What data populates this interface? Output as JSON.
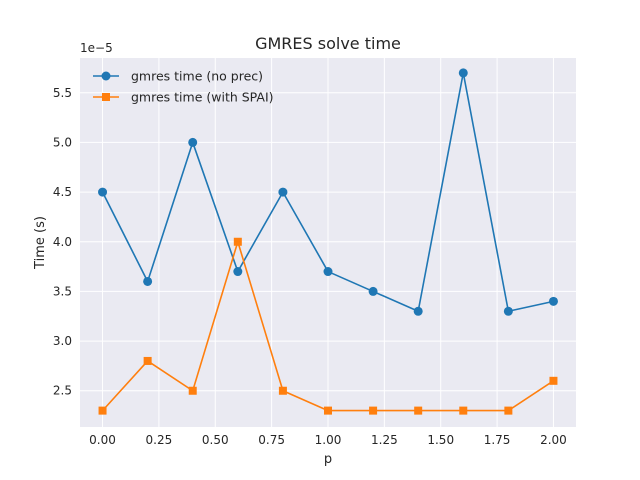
{
  "chart_data": {
    "type": "line",
    "title": "GMRES solve time",
    "xlabel": "p",
    "ylabel": "Time (s)",
    "y_offset_label": "1e−5",
    "xlim": [
      -0.1,
      2.1
    ],
    "ylim": [
      2.135,
      5.85
    ],
    "x_ticks": [
      0.0,
      0.25,
      0.5,
      0.75,
      1.0,
      1.25,
      1.5,
      1.75,
      2.0
    ],
    "x_tick_labels": [
      "0.00",
      "0.25",
      "0.50",
      "0.75",
      "1.00",
      "1.25",
      "1.50",
      "1.75",
      "2.00"
    ],
    "y_ticks": [
      2.5,
      3.0,
      3.5,
      4.0,
      4.5,
      5.0,
      5.5
    ],
    "y_tick_labels": [
      "2.5",
      "3.0",
      "3.5",
      "4.0",
      "4.5",
      "5.0",
      "5.5"
    ],
    "grid": true,
    "legend_position": "top-left",
    "x": [
      0.0,
      0.2,
      0.4,
      0.6,
      0.8,
      1.0,
      1.2,
      1.4,
      1.6,
      1.8,
      2.0
    ],
    "series": [
      {
        "name": "gmres time (no prec)",
        "color": "#1f77b4",
        "marker": "circle",
        "values": [
          4.5,
          3.6,
          5.0,
          3.7,
          4.5,
          3.7,
          3.5,
          3.3,
          5.7,
          3.3,
          3.4
        ]
      },
      {
        "name": "gmres time (with SPAI)",
        "color": "#ff7f0e",
        "marker": "square",
        "values": [
          2.3,
          2.8,
          2.5,
          4.0,
          2.5,
          2.3,
          2.3,
          2.3,
          2.3,
          2.3,
          2.6
        ]
      }
    ],
    "colors": {
      "plot_bg": "#eaeaf2",
      "grid": "#ffffff",
      "text": "#262626"
    }
  }
}
